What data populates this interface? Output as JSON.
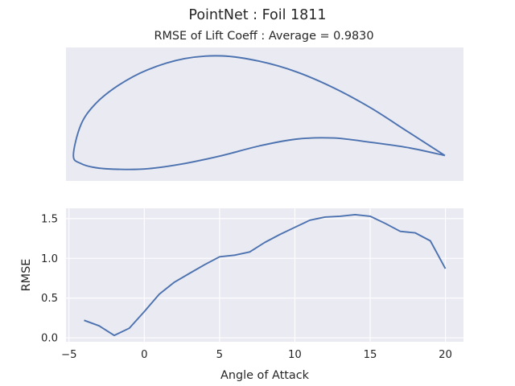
{
  "figure": {
    "suptitle": "PointNet   :   Foil 1811",
    "subtitle": "RMSE of Lift Coeff : Average = 0.9830",
    "colors": {
      "line": "#4c72b0",
      "axes_bg": "#eaeaf2",
      "grid": "#ffffff",
      "text": "#262626"
    }
  },
  "chart_data": [
    {
      "type": "line",
      "title": "",
      "xlabel": "",
      "ylabel": "",
      "grid": false,
      "description_shape": "airfoil outline",
      "x": [
        1.0,
        0.9,
        0.8,
        0.7,
        0.6,
        0.5,
        0.4,
        0.3,
        0.2,
        0.12,
        0.06,
        0.02,
        0.0,
        0.02,
        0.06,
        0.12,
        0.2,
        0.3,
        0.4,
        0.5,
        0.6,
        0.7,
        0.8,
        0.9,
        1.0
      ],
      "y": [
        0.0,
        0.045,
        0.09,
        0.128,
        0.158,
        0.178,
        0.188,
        0.183,
        0.162,
        0.132,
        0.098,
        0.058,
        0.0,
        -0.015,
        -0.023,
        -0.026,
        -0.025,
        -0.015,
        0.0,
        0.018,
        0.031,
        0.033,
        0.025,
        0.015,
        0.0
      ],
      "xlim": [
        -0.02,
        1.05
      ],
      "ylim": [
        -0.048,
        0.204
      ]
    },
    {
      "type": "line",
      "title": "",
      "xlabel": "Angle of Attack",
      "ylabel": "RMSE",
      "grid": true,
      "x": [
        -4,
        -3,
        -2,
        -1,
        0,
        1,
        2,
        3,
        4,
        5,
        6,
        7,
        8,
        9,
        10,
        11,
        12,
        13,
        14,
        15,
        16,
        17,
        18,
        19,
        20
      ],
      "y": [
        0.22,
        0.15,
        0.03,
        0.12,
        0.33,
        0.55,
        0.7,
        0.81,
        0.92,
        1.02,
        1.04,
        1.08,
        1.2,
        1.3,
        1.39,
        1.48,
        1.52,
        1.53,
        1.55,
        1.53,
        1.44,
        1.34,
        1.32,
        1.22,
        0.87
      ],
      "xlim": [
        -5.2,
        21.2
      ],
      "ylim": [
        -0.05,
        1.63
      ],
      "xticks": [
        -5,
        0,
        5,
        10,
        15,
        20
      ],
      "xtick_labels": [
        "−5",
        "0",
        "5",
        "10",
        "15",
        "20"
      ],
      "yticks": [
        0.0,
        0.5,
        1.0,
        1.5
      ],
      "ytick_labels": [
        "0.0",
        "0.5",
        "1.0",
        "1.5"
      ]
    }
  ]
}
